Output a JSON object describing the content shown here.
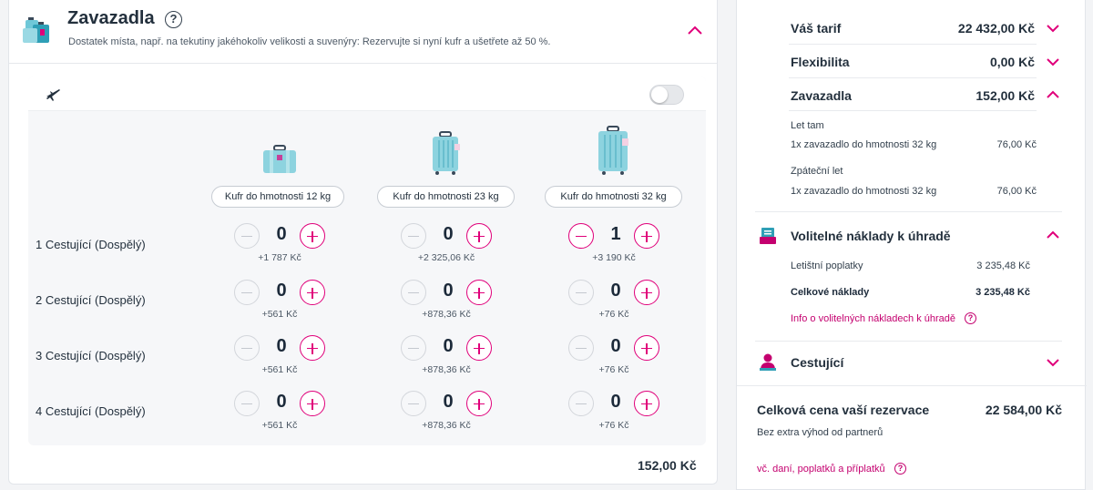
{
  "baggage": {
    "title": "Zavazadla",
    "subtitle": "Dostatek místa, např. na tekutiny jakéhokoliv velikosti a suvenýry: Rezervujte si nyní kufr a ušetřete až 50 %.",
    "bag_types": [
      "Kufr do hmotnosti 12 kg",
      "Kufr do hmotnosti 23 kg",
      "Kufr do hmotnosti 32 kg"
    ],
    "rows": [
      {
        "label": "1 Cestující (Dospělý)",
        "cells": [
          {
            "count": "0",
            "price": "+1 787 Kč"
          },
          {
            "count": "0",
            "price": "+2 325,06 Kč"
          },
          {
            "count": "1",
            "price": "+3 190 Kč"
          }
        ]
      },
      {
        "label": "2 Cestující (Dospělý)",
        "cells": [
          {
            "count": "0",
            "price": "+561 Kč"
          },
          {
            "count": "0",
            "price": "+878,36 Kč"
          },
          {
            "count": "0",
            "price": "+76 Kč"
          }
        ]
      },
      {
        "label": "3 Cestující (Dospělý)",
        "cells": [
          {
            "count": "0",
            "price": "+561 Kč"
          },
          {
            "count": "0",
            "price": "+878,36 Kč"
          },
          {
            "count": "0",
            "price": "+76 Kč"
          }
        ]
      },
      {
        "label": "4 Cestující (Dospělý)",
        "cells": [
          {
            "count": "0",
            "price": "+561 Kč"
          },
          {
            "count": "0",
            "price": "+878,36 Kč"
          },
          {
            "count": "0",
            "price": "+76 Kč"
          }
        ]
      }
    ],
    "total": "152,00 Kč",
    "toggle_on": false
  },
  "summary": {
    "tariff": {
      "label": "Váš tarif",
      "value": "22 432,00 Kč"
    },
    "flexibility": {
      "label": "Flexibilita",
      "value": "0,00 Kč"
    },
    "baggage": {
      "label": "Zavazadla",
      "value": "152,00 Kč"
    },
    "outbound": {
      "heading": "Let tam",
      "item": "1x zavazadlo do hmotnosti 32 kg",
      "price": "76,00 Kč"
    },
    "return": {
      "heading": "Zpáteční let",
      "item": "1x zavazadlo do hmotnosti 32 kg",
      "price": "76,00 Kč"
    },
    "optional": {
      "label": "Volitelné náklady k úhradě",
      "airport_fees_label": "Letištní poplatky",
      "airport_fees_value": "3 235,48 Kč",
      "total_label": "Celkové náklady",
      "total_value": "3 235,48 Kč",
      "info_link": "Info o volitelných nákladech k úhradě"
    },
    "passengers": {
      "label": "Cestující"
    },
    "grand_total": {
      "label": "Celková cena vaší rezervace",
      "value": "22 584,00 Kč",
      "note": "Bez extra výhod od partnerů",
      "link": "vč. daní, poplatků a příplatků"
    }
  },
  "colors": {
    "accent": "#e0007a",
    "text": "#23303d",
    "suitcase": "#8dd3df"
  }
}
